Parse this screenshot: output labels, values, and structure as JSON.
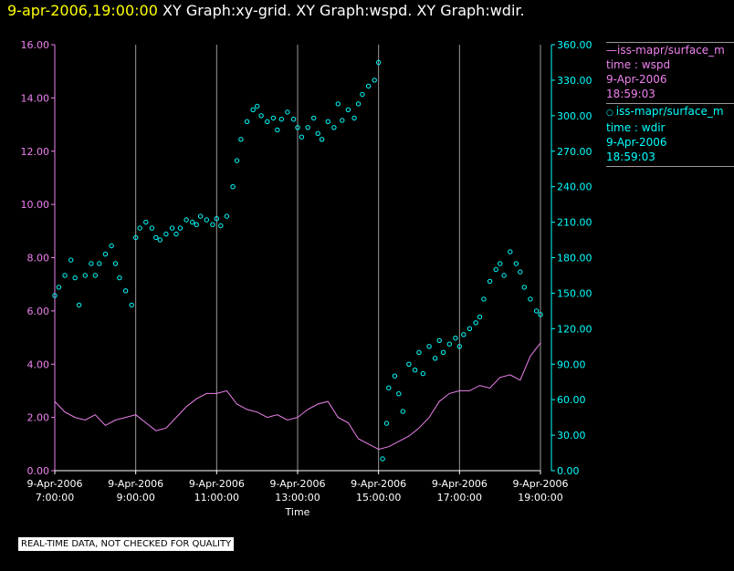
{
  "header": {
    "timestamp": "9-apr-2006,19:00:00",
    "graphs": "XY Graph:xy-grid.  XY Graph:wspd.  XY Graph:wdir."
  },
  "legend": {
    "entries": [
      {
        "marker": "line",
        "lines": [
          "iss-mapr/surface_m",
          "time : wspd",
          "9-Apr-2006",
          "18:59:03"
        ],
        "color": "#ee82ee"
      },
      {
        "marker": "circle",
        "lines": [
          "iss-mapr/surface_m",
          "time : wdir",
          "9-Apr-2006",
          "18:59:03"
        ],
        "color": "#00ffff"
      }
    ]
  },
  "footer": {
    "quality_note": "REAL-TIME DATA, NOT CHECKED FOR QUALITY"
  },
  "colors": {
    "wspd": "#ee82ee",
    "wdir": "#00ffff",
    "grid": "#9a9a9a",
    "timestamp": "#ffff00"
  },
  "chart_data": {
    "type": "line",
    "xlabel": "Time",
    "x_range_hours": [
      7,
      19
    ],
    "x_ticks": [
      {
        "hour": 7,
        "date": "9-Apr-2006",
        "time": "7:00:00"
      },
      {
        "hour": 9,
        "date": "9-Apr-2006",
        "time": "9:00:00"
      },
      {
        "hour": 11,
        "date": "9-Apr-2006",
        "time": "11:00:00"
      },
      {
        "hour": 13,
        "date": "9-Apr-2006",
        "time": "13:00:00"
      },
      {
        "hour": 15,
        "date": "9-Apr-2006",
        "time": "15:00:00"
      },
      {
        "hour": 17,
        "date": "9-Apr-2006",
        "time": "17:00:00"
      },
      {
        "hour": 19,
        "date": "9-Apr-2006",
        "time": "19:00:00"
      }
    ],
    "y_left": {
      "label": "wspd",
      "range": [
        0,
        16
      ],
      "ticks": [
        "0.00",
        "2.00",
        "4.00",
        "6.00",
        "8.00",
        "10.00",
        "12.00",
        "14.00",
        "16.00"
      ]
    },
    "y_right": {
      "label": "wdir",
      "range": [
        0,
        360
      ],
      "ticks": [
        "0.00",
        "30.00",
        "60.00",
        "90.00",
        "120.00",
        "150.00",
        "180.00",
        "210.00",
        "240.00",
        "270.00",
        "300.00",
        "330.00",
        "360.00"
      ]
    },
    "series": [
      {
        "name": "wspd",
        "style": "line",
        "axis": "left",
        "points": [
          [
            7.0,
            2.6
          ],
          [
            7.25,
            2.2
          ],
          [
            7.5,
            2.0
          ],
          [
            7.75,
            1.9
          ],
          [
            8.0,
            2.1
          ],
          [
            8.25,
            1.7
          ],
          [
            8.5,
            1.9
          ],
          [
            8.75,
            2.0
          ],
          [
            9.0,
            2.1
          ],
          [
            9.25,
            1.8
          ],
          [
            9.5,
            1.5
          ],
          [
            9.75,
            1.6
          ],
          [
            10.0,
            2.0
          ],
          [
            10.25,
            2.4
          ],
          [
            10.5,
            2.7
          ],
          [
            10.75,
            2.9
          ],
          [
            11.0,
            2.9
          ],
          [
            11.25,
            3.0
          ],
          [
            11.5,
            2.5
          ],
          [
            11.75,
            2.3
          ],
          [
            12.0,
            2.2
          ],
          [
            12.25,
            2.0
          ],
          [
            12.5,
            2.1
          ],
          [
            12.75,
            1.9
          ],
          [
            13.0,
            2.0
          ],
          [
            13.25,
            2.3
          ],
          [
            13.5,
            2.5
          ],
          [
            13.75,
            2.6
          ],
          [
            14.0,
            2.0
          ],
          [
            14.25,
            1.8
          ],
          [
            14.5,
            1.2
          ],
          [
            14.75,
            1.0
          ],
          [
            15.0,
            0.8
          ],
          [
            15.25,
            0.9
          ],
          [
            15.5,
            1.1
          ],
          [
            15.75,
            1.3
          ],
          [
            16.0,
            1.6
          ],
          [
            16.25,
            2.0
          ],
          [
            16.5,
            2.6
          ],
          [
            16.75,
            2.9
          ],
          [
            17.0,
            3.0
          ],
          [
            17.25,
            3.0
          ],
          [
            17.5,
            3.2
          ],
          [
            17.75,
            3.1
          ],
          [
            18.0,
            3.5
          ],
          [
            18.25,
            3.6
          ],
          [
            18.5,
            3.4
          ],
          [
            18.75,
            4.3
          ],
          [
            19.0,
            4.8
          ]
        ]
      },
      {
        "name": "wdir",
        "style": "circle",
        "axis": "right",
        "points": [
          [
            7.0,
            148
          ],
          [
            7.1,
            155
          ],
          [
            7.25,
            165
          ],
          [
            7.4,
            178
          ],
          [
            7.5,
            163
          ],
          [
            7.6,
            140
          ],
          [
            7.75,
            165
          ],
          [
            7.9,
            175
          ],
          [
            8.0,
            165
          ],
          [
            8.1,
            175
          ],
          [
            8.25,
            183
          ],
          [
            8.4,
            190
          ],
          [
            8.5,
            175
          ],
          [
            8.6,
            163
          ],
          [
            8.75,
            152
          ],
          [
            8.9,
            140
          ],
          [
            9.0,
            197
          ],
          [
            9.1,
            205
          ],
          [
            9.25,
            210
          ],
          [
            9.4,
            205
          ],
          [
            9.5,
            197
          ],
          [
            9.6,
            195
          ],
          [
            9.75,
            200
          ],
          [
            9.9,
            205
          ],
          [
            10.0,
            200
          ],
          [
            10.1,
            205
          ],
          [
            10.25,
            212
          ],
          [
            10.4,
            210
          ],
          [
            10.5,
            208
          ],
          [
            10.6,
            215
          ],
          [
            10.75,
            212
          ],
          [
            10.9,
            208
          ],
          [
            11.0,
            213
          ],
          [
            11.1,
            207
          ],
          [
            11.25,
            215
          ],
          [
            11.4,
            240
          ],
          [
            11.5,
            262
          ],
          [
            11.6,
            280
          ],
          [
            11.75,
            295
          ],
          [
            11.9,
            305
          ],
          [
            12.0,
            308
          ],
          [
            12.1,
            300
          ],
          [
            12.25,
            295
          ],
          [
            12.4,
            298
          ],
          [
            12.5,
            288
          ],
          [
            12.6,
            297
          ],
          [
            12.75,
            303
          ],
          [
            12.9,
            297
          ],
          [
            13.0,
            290
          ],
          [
            13.1,
            282
          ],
          [
            13.25,
            290
          ],
          [
            13.4,
            298
          ],
          [
            13.5,
            285
          ],
          [
            13.6,
            280
          ],
          [
            13.75,
            295
          ],
          [
            13.9,
            290
          ],
          [
            14.0,
            310
          ],
          [
            14.1,
            296
          ],
          [
            14.25,
            305
          ],
          [
            14.4,
            298
          ],
          [
            14.5,
            310
          ],
          [
            14.6,
            318
          ],
          [
            14.75,
            325
          ],
          [
            14.9,
            330
          ],
          [
            15.0,
            345
          ],
          [
            15.1,
            10
          ],
          [
            15.2,
            40
          ],
          [
            15.25,
            70
          ],
          [
            15.4,
            80
          ],
          [
            15.5,
            65
          ],
          [
            15.6,
            50
          ],
          [
            15.75,
            90
          ],
          [
            15.9,
            85
          ],
          [
            16.0,
            100
          ],
          [
            16.1,
            82
          ],
          [
            16.25,
            105
          ],
          [
            16.4,
            95
          ],
          [
            16.5,
            110
          ],
          [
            16.6,
            100
          ],
          [
            16.75,
            107
          ],
          [
            16.9,
            112
          ],
          [
            17.0,
            105
          ],
          [
            17.1,
            115
          ],
          [
            17.25,
            120
          ],
          [
            17.4,
            125
          ],
          [
            17.5,
            130
          ],
          [
            17.6,
            145
          ],
          [
            17.75,
            160
          ],
          [
            17.9,
            170
          ],
          [
            18.0,
            175
          ],
          [
            18.1,
            165
          ],
          [
            18.25,
            185
          ],
          [
            18.4,
            175
          ],
          [
            18.5,
            168
          ],
          [
            18.6,
            155
          ],
          [
            18.75,
            145
          ],
          [
            18.9,
            135
          ],
          [
            19.0,
            132
          ]
        ]
      }
    ]
  }
}
